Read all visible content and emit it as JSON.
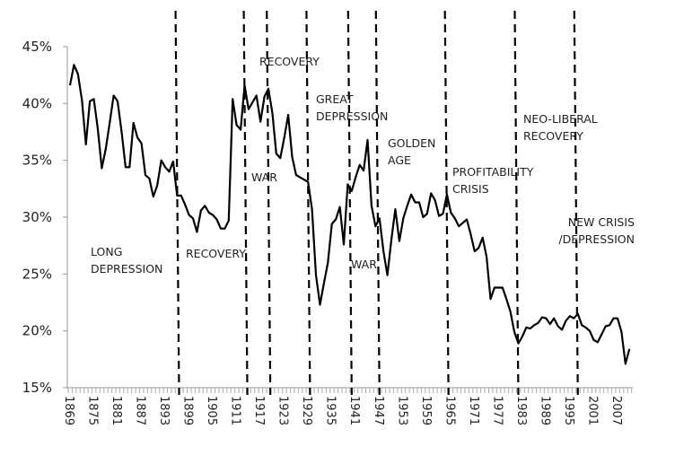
{
  "chart_data": {
    "type": "line",
    "title": "",
    "xlabel": "",
    "ylabel": "",
    "ylim": [
      15,
      45
    ],
    "xlim": [
      1869,
      2010
    ],
    "grid": false,
    "legend": "none",
    "y_tick_labels": [
      "15%",
      "20%",
      "25%",
      "30%",
      "35%",
      "40%",
      "45%"
    ],
    "y_ticks": [
      15,
      20,
      25,
      30,
      35,
      40,
      45
    ],
    "x_tick_labels": [
      "1869",
      "1875",
      "1881",
      "1887",
      "1893",
      "1899",
      "1905",
      "1911",
      "1917",
      "1923",
      "1929",
      "1935",
      "1941",
      "1947",
      "1953",
      "1959",
      "1965",
      "1971",
      "1977",
      "1983",
      "1989",
      "1995",
      "2001",
      "2007"
    ],
    "line_color": "#000000",
    "series": [
      {
        "x": [
          1869,
          1870,
          1871,
          1872,
          1873,
          1874,
          1875,
          1876,
          1877,
          1878,
          1879,
          1880,
          1881,
          1882,
          1883,
          1884,
          1885,
          1886,
          1887,
          1888,
          1889,
          1890,
          1891,
          1892,
          1893,
          1894,
          1895,
          1896,
          1897,
          1898,
          1899,
          1900,
          1901,
          1902,
          1903,
          1904,
          1905,
          1906,
          1907,
          1908,
          1909,
          1910,
          1911,
          1912,
          1913,
          1914,
          1915,
          1916,
          1917,
          1918,
          1919,
          1920,
          1921,
          1922,
          1923,
          1924,
          1925,
          1926,
          1927,
          1928,
          1929,
          1930,
          1931,
          1932,
          1933,
          1934,
          1935,
          1936,
          1937,
          1938,
          1939,
          1940,
          1941,
          1942,
          1943,
          1944,
          1945,
          1946,
          1947,
          1948,
          1949,
          1950,
          1951,
          1952,
          1953,
          1954,
          1955,
          1956,
          1957,
          1958,
          1959,
          1960,
          1961,
          1962,
          1963,
          1964,
          1965,
          1966,
          1967,
          1968,
          1969,
          1970,
          1971,
          1972,
          1973,
          1974,
          1975,
          1976,
          1977,
          1978,
          1979,
          1980,
          1981,
          1982,
          1983,
          1984,
          1985,
          1986,
          1987,
          1988,
          1989,
          1990,
          1991,
          1992,
          1993,
          1994,
          1995,
          1996,
          1997,
          1998,
          1999,
          2000,
          2001,
          2002,
          2003,
          2004,
          2005,
          2006,
          2007,
          2008,
          2009,
          2010
        ],
        "values": [
          41.6,
          43.4,
          42.6,
          40.3,
          36.4,
          40.2,
          40.4,
          37.8,
          34.3,
          36.0,
          38.3,
          40.7,
          40.2,
          37.5,
          34.4,
          34.4,
          38.3,
          37.0,
          36.5,
          33.7,
          33.4,
          31.8,
          32.8,
          35.0,
          34.4,
          34.0,
          34.9,
          31.9,
          31.9,
          31.1,
          30.2,
          29.9,
          28.7,
          30.6,
          31.0,
          30.4,
          30.2,
          29.8,
          29.0,
          29.0,
          29.7,
          40.4,
          38.1,
          37.7,
          41.6,
          39.5,
          40.1,
          40.7,
          38.4,
          40.6,
          41.3,
          39.2,
          35.6,
          35.2,
          37.0,
          39.0,
          35.3,
          33.7,
          33.5,
          33.3,
          33.1,
          30.7,
          24.9,
          22.3,
          24.2,
          26.0,
          29.4,
          29.8,
          30.9,
          27.6,
          32.9,
          32.3,
          33.5,
          34.6,
          34.1,
          36.8,
          31.0,
          29.2,
          29.9,
          27.0,
          24.9,
          28.0,
          30.7,
          27.9,
          29.9,
          31.0,
          32.0,
          31.3,
          31.3,
          30.0,
          30.3,
          32.1,
          31.5,
          30.1,
          30.3,
          32.0,
          30.4,
          29.9,
          29.2,
          29.5,
          29.8,
          28.5,
          27.0,
          27.3,
          28.2,
          26.5,
          22.8,
          23.8,
          23.8,
          23.8,
          22.8,
          21.7,
          19.9,
          18.9,
          19.5,
          20.3,
          20.2,
          20.5,
          20.7,
          21.2,
          21.1,
          20.6,
          21.1,
          20.4,
          20.1,
          20.9,
          21.3,
          21.1,
          21.5,
          20.5,
          20.3,
          20.0,
          19.2,
          19.0,
          19.7,
          20.4,
          20.5,
          21.1,
          21.1,
          19.9,
          17.1,
          18.4
        ]
      }
    ],
    "period_dividers": [
      1896.5,
      1913.7,
      1919.5,
      1929.5,
      1940,
      1947,
      1964.4,
      1982,
      1997
    ],
    "annotations": [
      {
        "lines": [
          "LONG",
          "DEPRESSION"
        ]
      },
      {
        "lines": [
          "RECOVERY"
        ]
      },
      {
        "lines": [
          "WAR"
        ]
      },
      {
        "lines": [
          "RECOVERY"
        ]
      },
      {
        "lines": [
          "GREAT",
          "DEPRESSION"
        ]
      },
      {
        "lines": [
          "WAR"
        ]
      },
      {
        "lines": [
          "GOLDEN",
          "AGE"
        ]
      },
      {
        "lines": [
          "PROFITABILITY",
          "CRISIS"
        ]
      },
      {
        "lines": [
          "NEO-LIBERAL",
          "RECOVERY"
        ]
      },
      {
        "lines": [
          "NEW CRISIS",
          "/DEPRESSION"
        ]
      }
    ]
  }
}
